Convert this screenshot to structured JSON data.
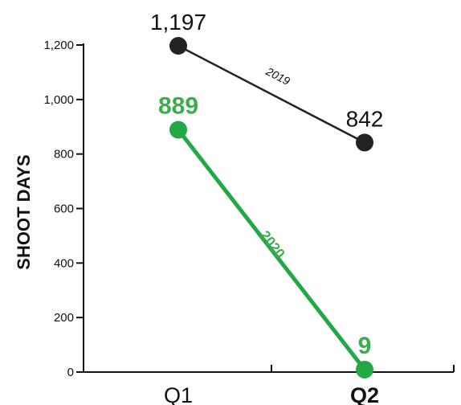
{
  "chart_data": {
    "type": "line",
    "categories": [
      "Q1",
      "Q2"
    ],
    "bold_category": "Q2",
    "ylabel": "SHOOT DAYS",
    "ylim": [
      0,
      1200
    ],
    "yticks": [
      0,
      200,
      400,
      600,
      800,
      1000,
      1200
    ],
    "ytick_labels": [
      "0",
      "200",
      "400",
      "600",
      "800",
      "1,000",
      "1,200"
    ],
    "grid": false,
    "series": [
      {
        "name": "2019",
        "values": [
          1197,
          842
        ],
        "value_labels": [
          "1,197",
          "842"
        ],
        "color": "#222222",
        "label_color": "#111111"
      },
      {
        "name": "2020",
        "values": [
          889,
          9
        ],
        "value_labels": [
          "889",
          "9"
        ],
        "color": "#22a845",
        "label_color": "#3cac4c"
      }
    ]
  }
}
